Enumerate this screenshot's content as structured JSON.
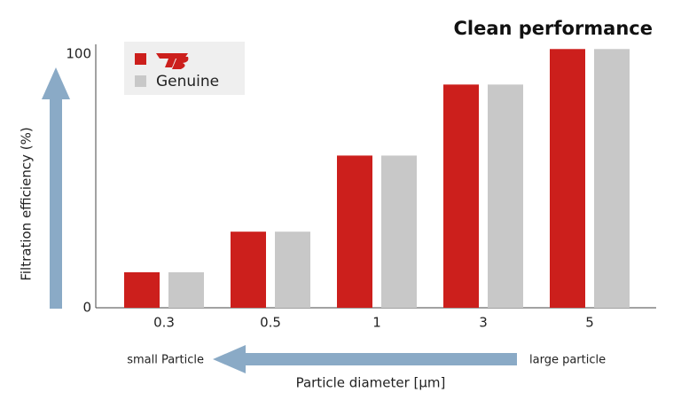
{
  "chart_data": {
    "type": "bar",
    "title": "Clean performance",
    "ylabel": "Filtration efficiency (%)",
    "xlabel": "Particle diameter [μm]",
    "annotations": [
      "small Particle",
      "large particle"
    ],
    "categories": [
      "0.3",
      "0.5",
      "1",
      "3",
      "5"
    ],
    "series": [
      {
        "color": "#cc1f1c",
        "values": [
          14,
          30,
          60,
          88,
          102
        ]
      },
      {
        "name": "Genuine",
        "color": "#c8c8c8",
        "values": [
          14,
          30,
          60,
          88,
          102
        ]
      }
    ],
    "ylim": [
      0,
      100
    ],
    "yticks": [
      0,
      100
    ],
    "grid": false
  }
}
